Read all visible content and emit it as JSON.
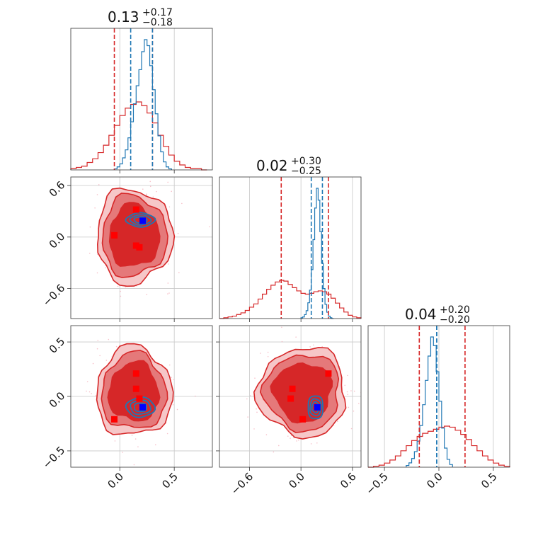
{
  "colors": {
    "red": "#d62728",
    "red_mid": "#e5797a",
    "red_light": "#f6c7c8",
    "blue": "#1f77b4",
    "marker_blue": "#0000ff",
    "marker_red": "#ff0000"
  },
  "titles": [
    {
      "main": "0.13",
      "sup": "+0.17",
      "sub": "−0.18"
    },
    {
      "main": "0.02",
      "sup": "+0.30",
      "sub": "−0.25"
    },
    {
      "main": "0.04",
      "sup": "+0.20",
      "sub": "−0.20"
    }
  ],
  "chart_data": {
    "type": "corner",
    "parameters": 3,
    "axes": [
      {
        "range": [
          -0.45,
          0.85
        ],
        "ticks": [
          0.0,
          0.5
        ],
        "tick_labels": [
          "0.0",
          "0.5"
        ]
      },
      {
        "range": [
          -0.95,
          0.7
        ],
        "ticks": [
          -0.6,
          0.0,
          0.6
        ],
        "tick_labels": [
          "−0.6",
          "0.0",
          "0.6"
        ]
      },
      {
        "range": [
          -0.65,
          0.65
        ],
        "ticks": [
          -0.5,
          0.0,
          0.5
        ],
        "tick_labels": [
          "−0.5",
          "0.0",
          "0.5"
        ]
      }
    ],
    "grid": true,
    "quantile_lines": {
      "red": [
        [
          -0.05,
          0.3
        ],
        [
          -0.23,
          0.32
        ],
        [
          -0.18,
          0.24
        ]
      ],
      "blue": [
        [
          0.1,
          0.3
        ],
        [
          0.12,
          0.25
        ],
        [
          -0.02,
          -0.02
        ]
      ]
    },
    "true_values_blue": [
      0.21,
      0.19,
      -0.1
    ],
    "red_points": [
      [
        0.15,
        0.32,
        0.21
      ],
      [
        -0.05,
        0.02,
        -0.21
      ],
      [
        0.15,
        -0.1,
        0.07
      ],
      [
        0.18,
        -0.12,
        -0.02
      ]
    ],
    "hist_red": [
      {
        "x": [
          -0.45,
          -0.4,
          -0.35,
          -0.3,
          -0.25,
          -0.2,
          -0.15,
          -0.1,
          -0.05,
          0.0,
          0.05,
          0.1,
          0.15,
          0.2,
          0.25,
          0.3,
          0.35,
          0.4,
          0.45,
          0.5,
          0.55,
          0.6,
          0.65,
          0.7,
          0.75
        ],
        "y": [
          1,
          2,
          3,
          6,
          9,
          14,
          20,
          28,
          36,
          44,
          50,
          53,
          55,
          52,
          46,
          38,
          28,
          19,
          12,
          7,
          4,
          2,
          1,
          1,
          0
        ]
      },
      {
        "x": [
          -0.95,
          -0.9,
          -0.85,
          -0.8,
          -0.75,
          -0.7,
          -0.65,
          -0.6,
          -0.55,
          -0.5,
          -0.45,
          -0.4,
          -0.35,
          -0.3,
          -0.25,
          -0.2,
          -0.15,
          -0.1,
          -0.05,
          0.0,
          0.05,
          0.1,
          0.15,
          0.2,
          0.25,
          0.3,
          0.35,
          0.4,
          0.45,
          0.5,
          0.55,
          0.6,
          0.65
        ],
        "y": [
          0,
          1,
          2,
          3,
          5,
          7,
          10,
          14,
          18,
          24,
          30,
          36,
          41,
          45,
          47,
          46,
          42,
          38,
          34,
          31,
          30,
          31,
          33,
          34,
          33,
          30,
          25,
          19,
          13,
          8,
          4,
          2,
          1
        ]
      },
      {
        "x": [
          -0.65,
          -0.6,
          -0.55,
          -0.5,
          -0.45,
          -0.4,
          -0.35,
          -0.3,
          -0.25,
          -0.2,
          -0.15,
          -0.1,
          -0.05,
          0.0,
          0.05,
          0.1,
          0.15,
          0.2,
          0.25,
          0.3,
          0.35,
          0.4,
          0.45,
          0.5,
          0.55,
          0.6
        ],
        "y": [
          0,
          1,
          2,
          4,
          7,
          11,
          16,
          21,
          26,
          30,
          33,
          35,
          37,
          39,
          40,
          39,
          36,
          32,
          27,
          21,
          16,
          11,
          7,
          4,
          2,
          1
        ]
      }
    ],
    "hist_blue": [
      {
        "x": [
          -0.05,
          -0.025,
          0.0,
          0.025,
          0.05,
          0.075,
          0.1,
          0.125,
          0.15,
          0.175,
          0.2,
          0.225,
          0.25,
          0.275,
          0.3,
          0.325,
          0.35,
          0.375,
          0.4,
          0.425,
          0.45
        ],
        "y": [
          1,
          3,
          6,
          12,
          20,
          32,
          48,
          66,
          84,
          100,
          118,
          130,
          124,
          104,
          80,
          56,
          34,
          18,
          8,
          3,
          1
        ]
      },
      {
        "x": [
          0.0,
          0.02,
          0.04,
          0.06,
          0.08,
          0.1,
          0.12,
          0.14,
          0.16,
          0.18,
          0.2,
          0.22,
          0.24,
          0.26,
          0.28,
          0.3,
          0.32,
          0.34,
          0.36
        ],
        "y": [
          1,
          2,
          5,
          10,
          20,
          36,
          62,
          100,
          140,
          165,
          150,
          110,
          70,
          38,
          18,
          8,
          3,
          1,
          0
        ]
      },
      {
        "x": [
          -0.3,
          -0.275,
          -0.25,
          -0.225,
          -0.2,
          -0.175,
          -0.15,
          -0.125,
          -0.1,
          -0.075,
          -0.05,
          -0.025,
          0.0,
          0.025,
          0.05,
          0.075,
          0.1
        ],
        "y": [
          2,
          5,
          10,
          18,
          30,
          48,
          72,
          100,
          128,
          150,
          140,
          110,
          76,
          45,
          22,
          9,
          3
        ]
      }
    ]
  }
}
